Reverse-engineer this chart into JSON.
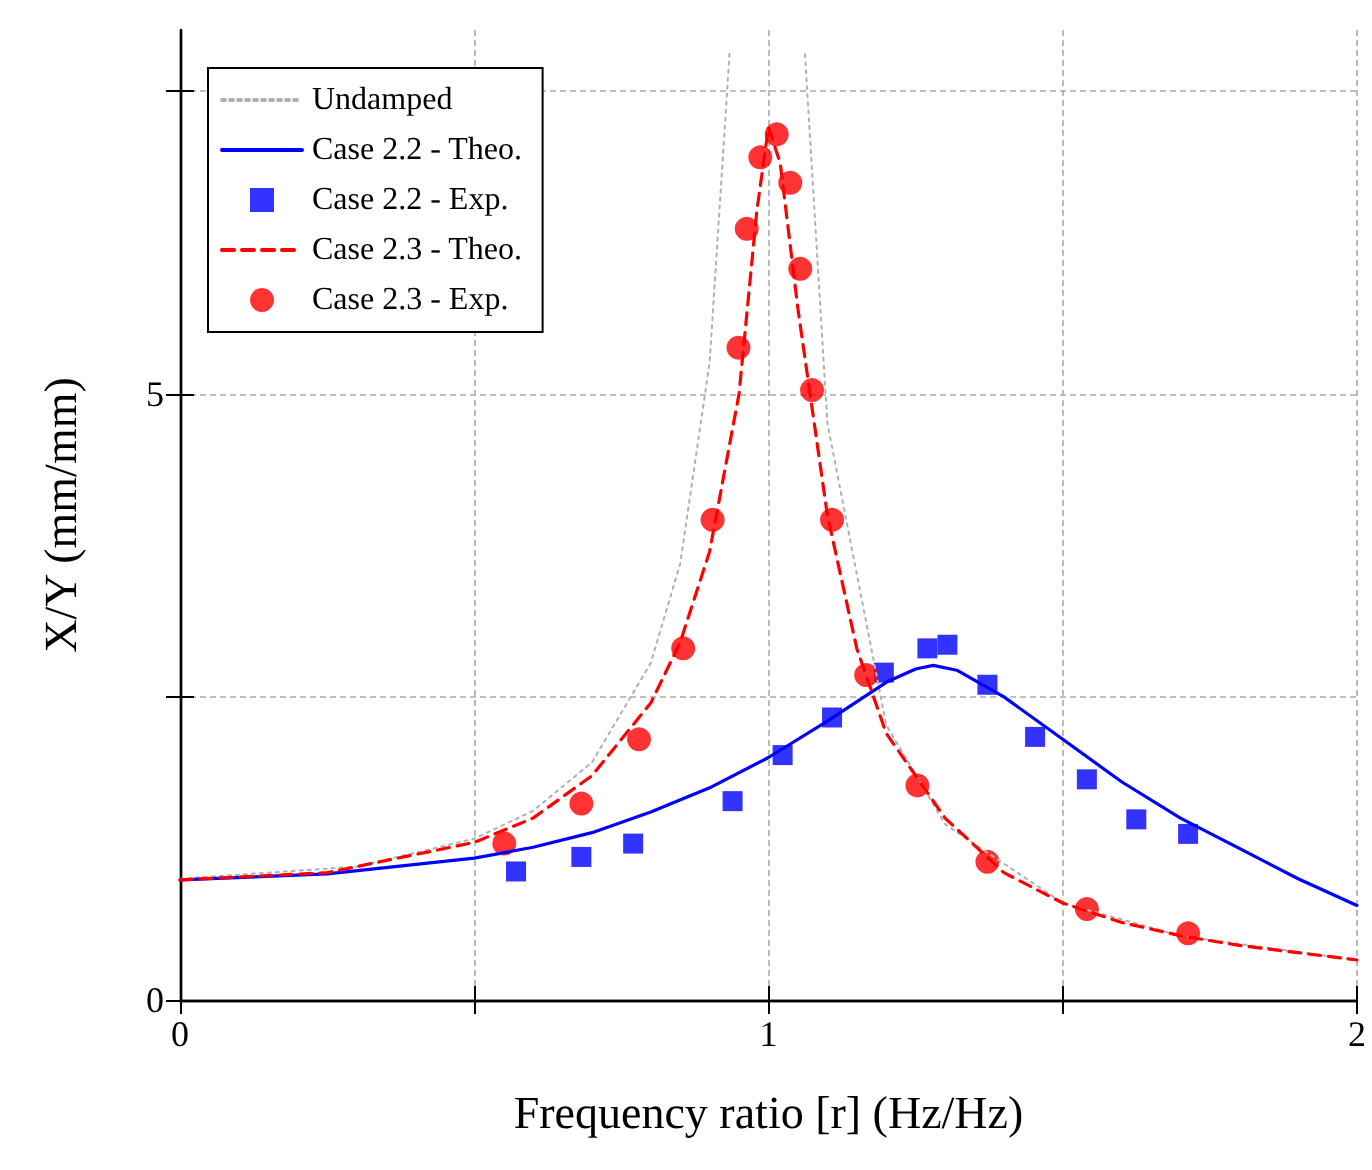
{
  "chart_data": {
    "type": "line",
    "xlabel": "Frequency ratio [r] (Hz/Hz)",
    "ylabel": "X/Y (mm/mm)",
    "xlim": [
      0,
      2
    ],
    "xticks": [
      0,
      {
        "value": 0.5,
        "label": null
      },
      1,
      {
        "value": 1.5,
        "label": null
      },
      2
    ],
    "ylim": [
      0,
      8
    ],
    "yticks": [
      0,
      {
        "value": 2.5,
        "label": null
      },
      5,
      {
        "value": 7.5,
        "label": null
      }
    ],
    "grid": true,
    "legend": "top left",
    "series": [
      {
        "name": "Undamped",
        "type": "line",
        "color": "#b0b0b0",
        "line_style": "dotted",
        "marker": "none",
        "x": [
          0,
          0.3,
          0.5,
          0.6,
          0.7,
          0.8,
          0.85,
          0.9,
          0.934,
          1.0,
          1.062,
          1.1,
          1.2,
          1.3,
          1.5,
          1.7,
          2.0
        ],
        "values": [
          1,
          1.1,
          1.33,
          1.56,
          1.96,
          2.78,
          3.6,
          5.26,
          7.82,
          null,
          7.8,
          4.76,
          2.27,
          1.45,
          0.8,
          0.53,
          0.33
        ]
      },
      {
        "name": "Case 2.2 - Theo.",
        "type": "line",
        "color": "#0000ff",
        "line_style": "solid",
        "marker": "none",
        "x": [
          0,
          0.25,
          0.5,
          0.6,
          0.7,
          0.8,
          0.9,
          1.0,
          1.1,
          1.2,
          1.25,
          1.28,
          1.32,
          1.4,
          1.5,
          1.6,
          1.7,
          1.8,
          1.9,
          2.0
        ],
        "values": [
          0.99,
          1.04,
          1.17,
          1.26,
          1.38,
          1.55,
          1.75,
          2.0,
          2.3,
          2.62,
          2.73,
          2.76,
          2.72,
          2.5,
          2.15,
          1.8,
          1.5,
          1.25,
          1.0,
          0.78
        ]
      },
      {
        "name": "Case 2.2 - Exp.",
        "type": "scatter",
        "color": "#0000ff",
        "marker": "square",
        "x": [
          0.571,
          0.682,
          0.77,
          0.939,
          1.024,
          1.108,
          1.196,
          1.27,
          1.304,
          1.372,
          1.453,
          1.541,
          1.625,
          1.713
        ],
        "values": [
          1.06,
          1.18,
          1.29,
          1.64,
          2.02,
          2.33,
          2.7,
          2.9,
          2.93,
          2.6,
          2.17,
          1.82,
          1.49,
          1.37
        ]
      },
      {
        "name": "Case 2.3 - Theo.",
        "type": "line",
        "color": "#ff0000",
        "line_style": "dashed",
        "marker": "none",
        "x": [
          0,
          0.25,
          0.5,
          0.6,
          0.7,
          0.8,
          0.85,
          0.9,
          0.95,
          0.98,
          1.0,
          1.02,
          1.05,
          1.1,
          1.15,
          1.2,
          1.3,
          1.4,
          1.5,
          1.6,
          1.7,
          1.8,
          1.9,
          2.0
        ],
        "values": [
          0.99,
          1.05,
          1.3,
          1.5,
          1.85,
          2.45,
          2.95,
          3.7,
          5.0,
          6.5,
          7.2,
          6.9,
          5.7,
          4.0,
          2.9,
          2.2,
          1.5,
          1.05,
          0.8,
          0.64,
          0.53,
          0.45,
          0.39,
          0.33
        ]
      },
      {
        "name": "Case 2.3 - Exp.",
        "type": "scatter",
        "color": "#ff0000",
        "marker": "circle",
        "x": [
          0.551,
          0.682,
          0.78,
          0.855,
          0.905,
          0.949,
          0.963,
          0.986,
          1.014,
          1.037,
          1.054,
          1.074,
          1.108,
          1.166,
          1.253,
          1.372,
          1.541,
          1.713
        ],
        "values": [
          1.29,
          1.62,
          2.15,
          2.9,
          3.96,
          5.38,
          6.36,
          6.95,
          7.14,
          6.74,
          6.03,
          5.03,
          3.96,
          2.68,
          1.77,
          1.14,
          0.75,
          0.55
        ]
      }
    ]
  }
}
